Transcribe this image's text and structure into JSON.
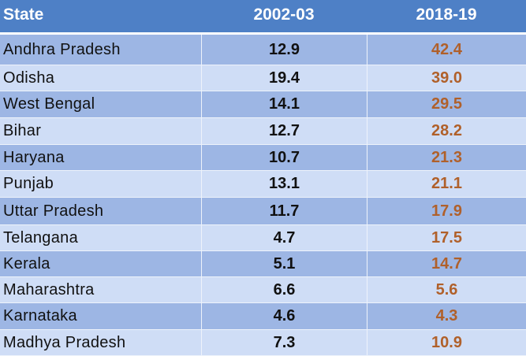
{
  "chart_data": {
    "type": "table",
    "columns": [
      "State",
      "2002-03",
      "2018-19"
    ],
    "rows": [
      {
        "state": "Andhra Pradesh",
        "v2002": "12.9",
        "v2018": "42.4"
      },
      {
        "state": "Odisha",
        "v2002": "19.4",
        "v2018": "39.0"
      },
      {
        "state": "West Bengal",
        "v2002": "14.1",
        "v2018": "29.5"
      },
      {
        "state": "Bihar",
        "v2002": "12.7",
        "v2018": "28.2"
      },
      {
        "state": "Haryana",
        "v2002": "10.7",
        "v2018": "21.3"
      },
      {
        "state": "Punjab",
        "v2002": "13.1",
        "v2018": "21.1"
      },
      {
        "state": "Uttar Pradesh",
        "v2002": "11.7",
        "v2018": "17.9"
      },
      {
        "state": "Telangana",
        "v2002": "4.7",
        "v2018": "17.5"
      },
      {
        "state": "Kerala",
        "v2002": "5.1",
        "v2018": "14.7"
      },
      {
        "state": "Maharashtra",
        "v2002": "6.6",
        "v2018": "5.6"
      },
      {
        "state": "Karnataka",
        "v2002": "4.6",
        "v2018": "4.3"
      },
      {
        "state": "Madhya Pradesh",
        "v2002": "7.3",
        "v2018": "10.9"
      }
    ]
  },
  "colors": {
    "header_bg": "#4e80c6",
    "row_dark": "#9db6e4",
    "row_light": "#cfddf6",
    "value_2018": "#b0602a"
  }
}
